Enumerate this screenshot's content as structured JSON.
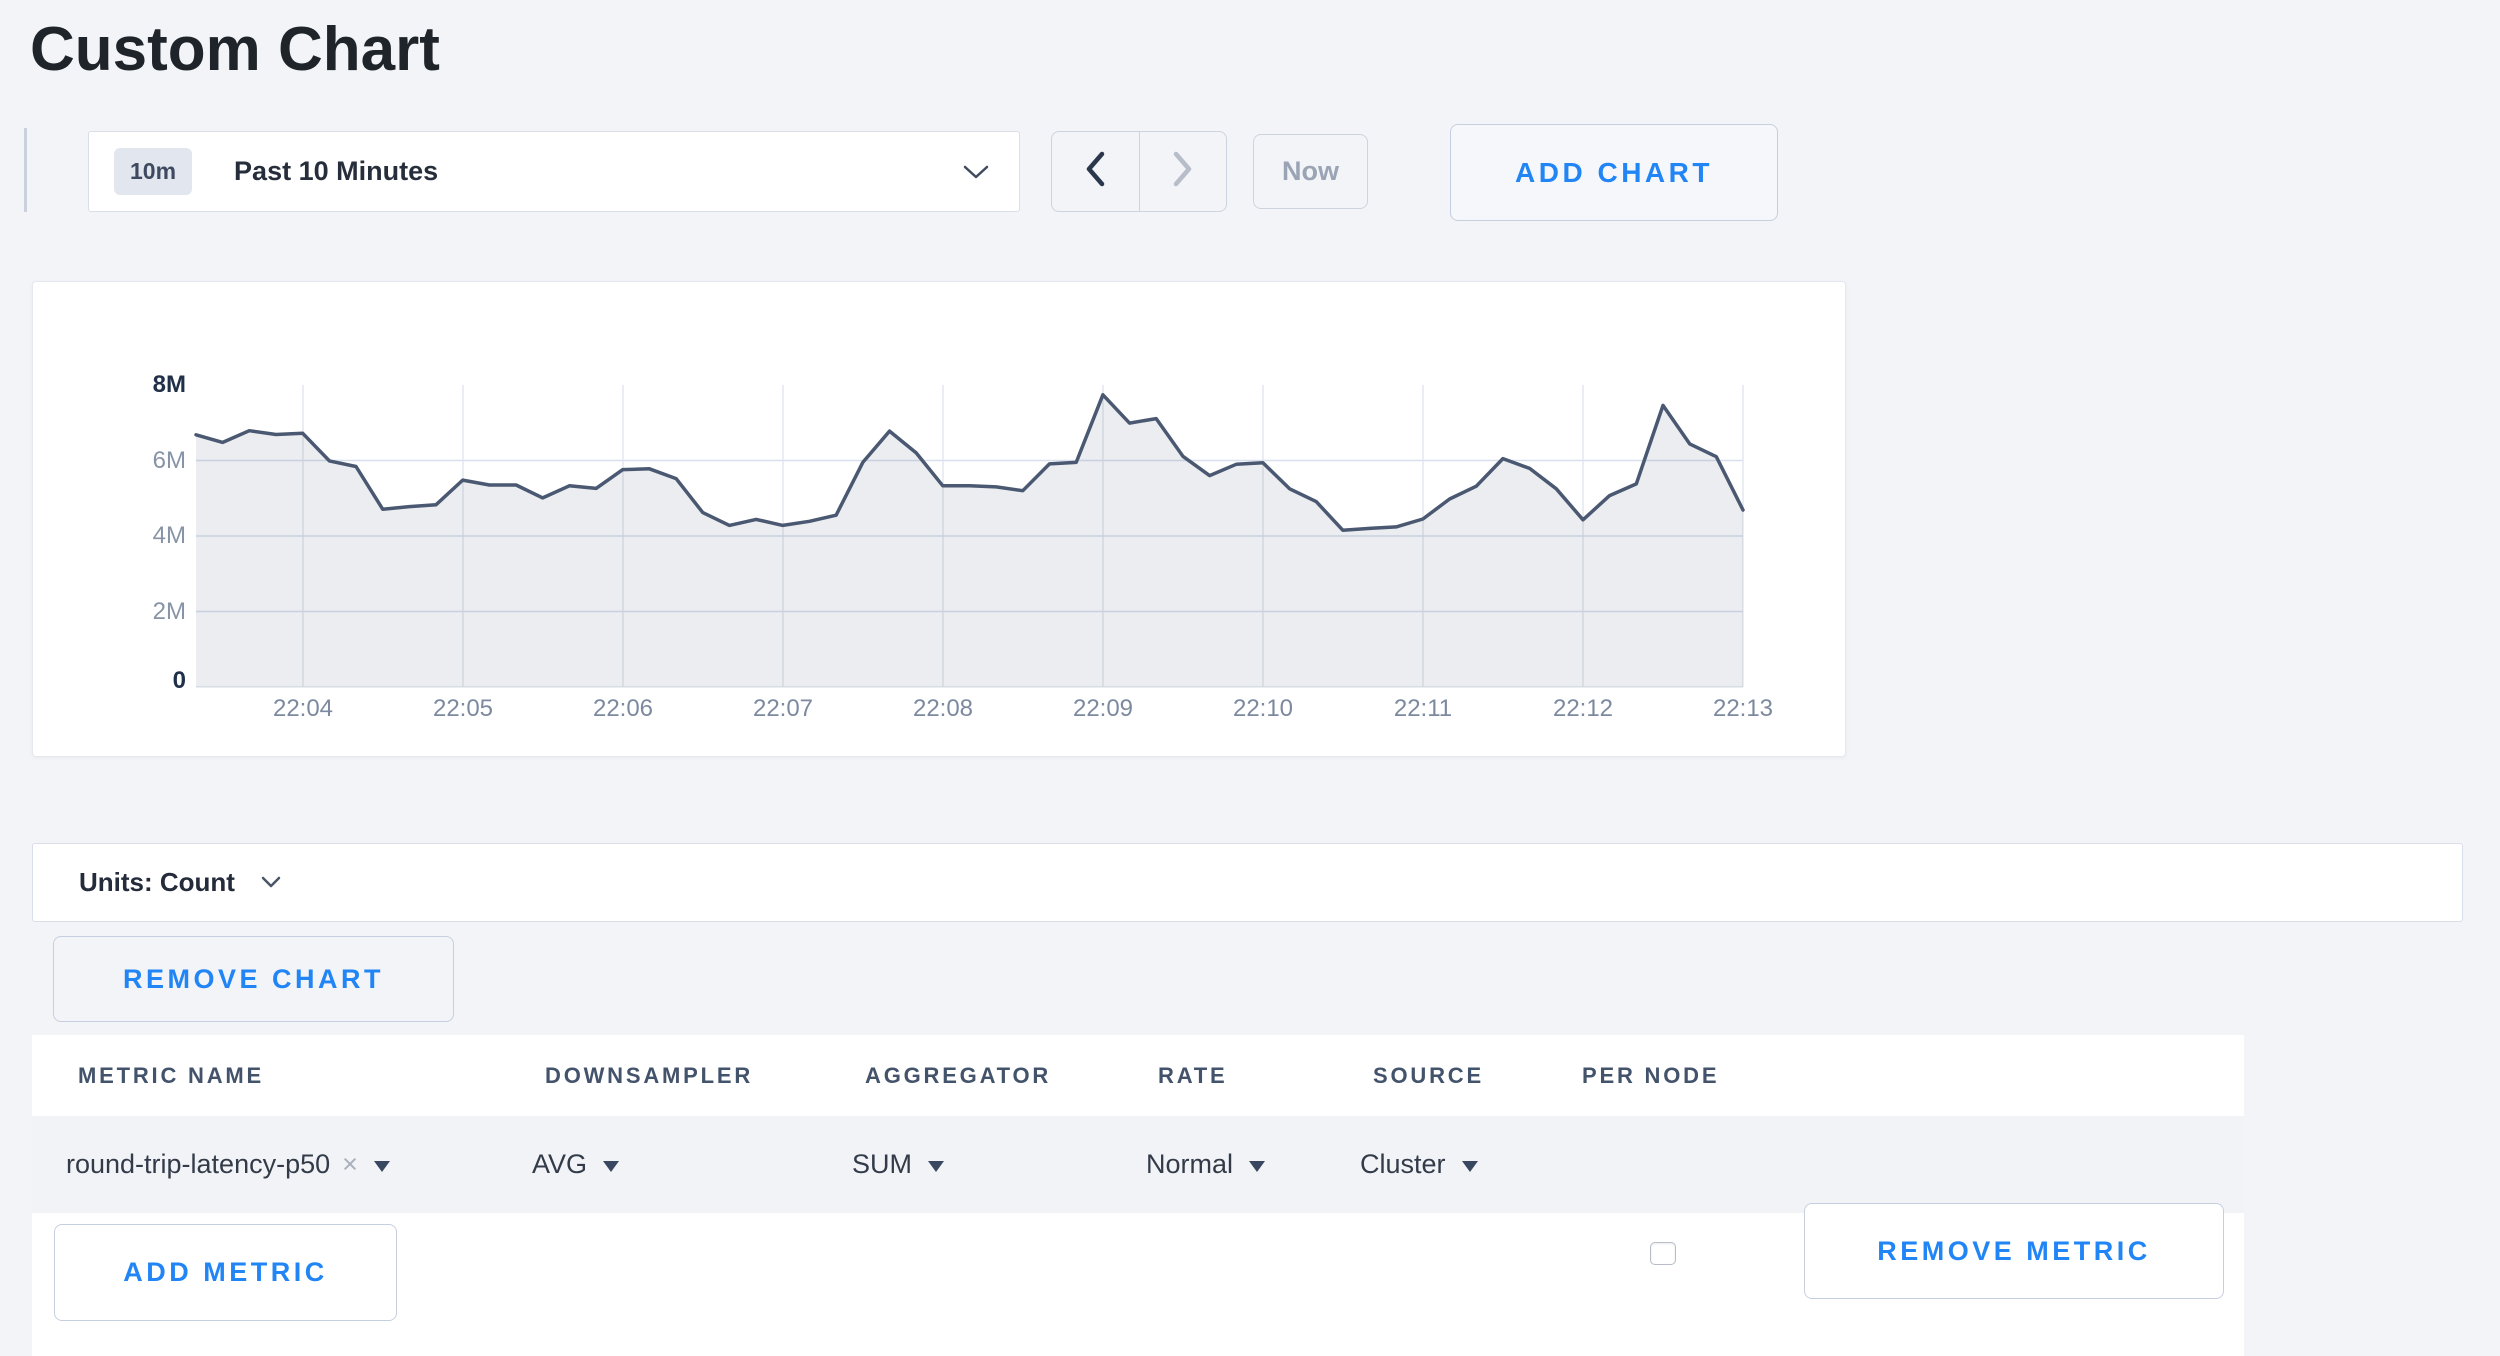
{
  "page": {
    "title": "Custom Chart",
    "background": "#f2f4f7",
    "accent_blue": "#2185f5"
  },
  "toolbar": {
    "time_range_badge": "10m",
    "time_range_label": "Past 10 Minutes",
    "now_label": "Now",
    "add_chart_label": "ADD CHART",
    "prev_enabled": true,
    "next_enabled": false
  },
  "units_bar": {
    "label": "Units: Count"
  },
  "buttons": {
    "remove_chart_label": "REMOVE CHART",
    "remove_metric_label": "REMOVE METRIC",
    "add_metric_label": "ADD METRIC"
  },
  "metrics_table": {
    "columns": [
      "METRIC NAME",
      "DOWNSAMPLER",
      "AGGREGATOR",
      "RATE",
      "SOURCE",
      "PER NODE"
    ],
    "rows": [
      {
        "metric_name": "round-trip-latency-p50",
        "clear_icon": "×",
        "downsampler": "AVG",
        "aggregator": "SUM",
        "rate": "Normal",
        "source": "Cluster",
        "per_node_checked": false
      }
    ]
  },
  "chart_data": {
    "type": "area",
    "title": "",
    "unit": "Count",
    "legend": false,
    "grid": true,
    "ylim": [
      0,
      8000000
    ],
    "ylabel": "",
    "xlabel": "",
    "y_ticks": [
      {
        "label": "8M",
        "value": 8,
        "emphasis": true
      },
      {
        "label": "6M",
        "value": 6,
        "emphasis": false
      },
      {
        "label": "4M",
        "value": 4,
        "emphasis": false
      },
      {
        "label": "2M",
        "value": 2,
        "emphasis": false
      },
      {
        "label": "0",
        "value": 0,
        "emphasis": true
      }
    ],
    "x_tick_labels": [
      "22:04",
      "22:05",
      "22:06",
      "22:07",
      "22:08",
      "22:09",
      "22:10",
      "22:11",
      "22:12",
      "22:13"
    ],
    "x_start_time": "22:03:20",
    "x_step_seconds": 10,
    "series": [
      {
        "name": "round-trip-latency-p50",
        "line_color": "#4a5872",
        "fill_color": "rgba(74,88,114,0.11)",
        "values_millions": [
          6.68,
          6.48,
          6.79,
          6.69,
          6.72,
          5.99,
          5.84,
          4.71,
          4.78,
          4.83,
          5.48,
          5.35,
          5.35,
          5.01,
          5.33,
          5.26,
          5.76,
          5.78,
          5.52,
          4.62,
          4.28,
          4.44,
          4.28,
          4.39,
          4.55,
          5.95,
          6.78,
          6.2,
          5.33,
          5.33,
          5.3,
          5.2,
          5.91,
          5.95,
          7.74,
          6.99,
          7.11,
          6.11,
          5.6,
          5.9,
          5.94,
          5.25,
          4.91,
          4.15,
          4.2,
          4.24,
          4.45,
          4.98,
          5.32,
          6.05,
          5.79,
          5.25,
          4.43,
          5.07,
          5.38,
          7.46,
          6.44,
          6.1,
          4.69
        ]
      }
    ],
    "colors": {
      "h_gridline": "#d7e0ee",
      "v_gridline": "#e4e8ef",
      "axis_line": "#e4e8ef"
    }
  }
}
